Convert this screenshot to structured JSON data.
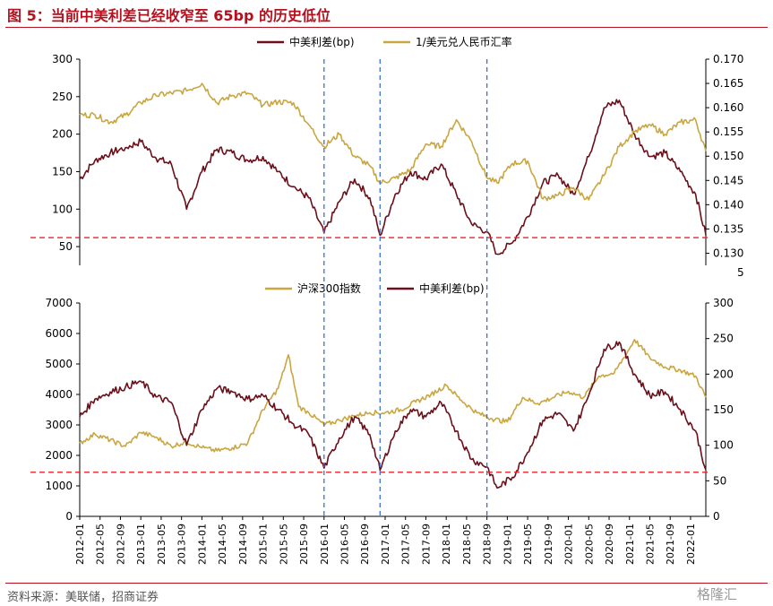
{
  "title": "图 5：当前中美利差已经收窄至 65bp 的历史低位",
  "source": "资料来源：美联储，招商证券",
  "watermark": "格隆汇",
  "colors": {
    "spread": "#6b0f1a",
    "fx": "#c9a640",
    "csi": "#c9a640",
    "ref_line": "#e8252a",
    "vline": "#3a6fd8",
    "title": "#b4101e"
  },
  "chart_data": [
    {
      "type": "line",
      "legend": [
        "中美利差(bp)",
        "1/美元兑人民币汇率"
      ],
      "y_left": {
        "ticks": [
          "300",
          "250",
          "200",
          "150",
          "100",
          "50"
        ],
        "range": [
          25,
          300
        ]
      },
      "y_right": {
        "ticks": [
          "0.170",
          "0.165",
          "0.160",
          "0.155",
          "0.150",
          "0.145",
          "0.140",
          "0.135",
          "0.130"
        ],
        "range": [
          0.1275,
          0.17
        ]
      },
      "reference_y": 62,
      "series": [
        {
          "name": "中美利差(bp)",
          "axis": "left",
          "x": [
            "2012-01",
            "2012-04",
            "2012-07",
            "2012-10",
            "2013-01",
            "2013-04",
            "2013-07",
            "2013-10",
            "2014-01",
            "2014-04",
            "2014-07",
            "2014-10",
            "2015-01",
            "2015-04",
            "2015-07",
            "2015-10",
            "2016-01",
            "2016-04",
            "2016-07",
            "2016-10",
            "2016-12",
            "2017-03",
            "2017-06",
            "2017-09",
            "2017-12",
            "2018-03",
            "2018-06",
            "2018-09",
            "2018-11",
            "2019-02",
            "2019-05",
            "2019-08",
            "2019-11",
            "2020-02",
            "2020-05",
            "2020-08",
            "2020-11",
            "2021-02",
            "2021-05",
            "2021-08",
            "2021-11",
            "2022-02",
            "2022-04"
          ],
          "y": [
            140,
            165,
            175,
            182,
            190,
            168,
            160,
            100,
            150,
            180,
            175,
            165,
            170,
            150,
            130,
            115,
            68,
            110,
            140,
            115,
            65,
            120,
            150,
            140,
            160,
            120,
            80,
            70,
            40,
            55,
            90,
            135,
            145,
            120,
            170,
            235,
            245,
            200,
            170,
            175,
            150,
            120,
            65
          ]
        },
        {
          "name": "1/美元兑人民币汇率",
          "axis": "right",
          "x": [
            "2012-01",
            "2012-04",
            "2012-07",
            "2012-10",
            "2013-01",
            "2013-04",
            "2013-07",
            "2013-10",
            "2014-01",
            "2014-04",
            "2014-07",
            "2014-10",
            "2015-01",
            "2015-04",
            "2015-07",
            "2015-10",
            "2016-01",
            "2016-04",
            "2016-07",
            "2016-10",
            "2016-12",
            "2017-03",
            "2017-06",
            "2017-09",
            "2017-12",
            "2018-03",
            "2018-06",
            "2018-09",
            "2018-11",
            "2019-02",
            "2019-05",
            "2019-08",
            "2019-11",
            "2020-02",
            "2020-05",
            "2020-08",
            "2020-11",
            "2021-02",
            "2021-05",
            "2021-08",
            "2021-11",
            "2022-02",
            "2022-04"
          ],
          "y": [
            0.1585,
            0.1585,
            0.157,
            0.1585,
            0.161,
            0.1625,
            0.163,
            0.1635,
            0.165,
            0.161,
            0.1625,
            0.163,
            0.1605,
            0.1612,
            0.161,
            0.1565,
            0.152,
            0.1545,
            0.15,
            0.148,
            0.1445,
            0.1455,
            0.1472,
            0.1525,
            0.152,
            0.1575,
            0.153,
            0.1455,
            0.1445,
            0.1485,
            0.149,
            0.1412,
            0.142,
            0.1435,
            0.141,
            0.146,
            0.152,
            0.155,
            0.1565,
            0.1545,
            0.157,
            0.1575,
            0.151
          ]
        }
      ]
    },
    {
      "type": "line",
      "legend": [
        "沪深300指数",
        "中美利差(bp)"
      ],
      "y_left": {
        "ticks": [
          "7000",
          "6000",
          "5000",
          "4000",
          "3000",
          "2000",
          "1000",
          "0"
        ],
        "range": [
          0,
          7000
        ]
      },
      "y_right": {
        "ticks": [
          "300",
          "250",
          "200",
          "150",
          "100",
          "50",
          "0"
        ],
        "range": [
          0,
          300
        ]
      },
      "reference_y": 62,
      "series": [
        {
          "name": "沪深300指数",
          "axis": "left",
          "x": [
            "2012-01",
            "2012-04",
            "2012-07",
            "2012-10",
            "2013-01",
            "2013-04",
            "2013-07",
            "2013-10",
            "2014-01",
            "2014-04",
            "2014-07",
            "2014-10",
            "2015-01",
            "2015-04",
            "2015-06",
            "2015-08",
            "2015-10",
            "2016-01",
            "2016-04",
            "2016-07",
            "2016-10",
            "2017-01",
            "2017-04",
            "2017-07",
            "2017-10",
            "2018-01",
            "2018-04",
            "2018-07",
            "2018-10",
            "2019-01",
            "2019-04",
            "2019-07",
            "2019-10",
            "2020-01",
            "2020-04",
            "2020-07",
            "2020-10",
            "2021-01",
            "2021-02",
            "2021-05",
            "2021-08",
            "2021-11",
            "2022-02",
            "2022-04"
          ],
          "y": [
            2400,
            2700,
            2500,
            2300,
            2750,
            2600,
            2300,
            2450,
            2250,
            2150,
            2250,
            2400,
            3500,
            4200,
            5300,
            3600,
            3400,
            3000,
            3150,
            3300,
            3400,
            3400,
            3500,
            3750,
            4000,
            4300,
            3800,
            3400,
            3200,
            3100,
            3900,
            3700,
            3900,
            4100,
            3900,
            4600,
            4700,
            5500,
            5800,
            5200,
            4900,
            4800,
            4600,
            3900
          ]
        },
        {
          "name": "中美利差(bp)",
          "axis": "right",
          "x": [
            "2012-01",
            "2012-04",
            "2012-07",
            "2012-10",
            "2013-01",
            "2013-04",
            "2013-07",
            "2013-10",
            "2014-01",
            "2014-04",
            "2014-07",
            "2014-10",
            "2015-01",
            "2015-04",
            "2015-07",
            "2015-10",
            "2016-01",
            "2016-04",
            "2016-07",
            "2016-10",
            "2016-12",
            "2017-03",
            "2017-06",
            "2017-09",
            "2017-12",
            "2018-03",
            "2018-06",
            "2018-09",
            "2018-11",
            "2019-02",
            "2019-05",
            "2019-08",
            "2019-11",
            "2020-02",
            "2020-05",
            "2020-08",
            "2020-11",
            "2021-02",
            "2021-05",
            "2021-08",
            "2021-11",
            "2022-02",
            "2022-04"
          ],
          "y": [
            140,
            165,
            175,
            182,
            190,
            168,
            160,
            100,
            150,
            180,
            175,
            165,
            170,
            150,
            130,
            115,
            68,
            110,
            140,
            115,
            65,
            120,
            150,
            140,
            160,
            120,
            80,
            70,
            40,
            55,
            90,
            135,
            145,
            120,
            170,
            235,
            245,
            200,
            170,
            175,
            150,
            120,
            65
          ]
        }
      ]
    }
  ],
  "x_ticks": [
    "2012-01",
    "2012-05",
    "2012-09",
    "2013-01",
    "2013-05",
    "2013-09",
    "2014-01",
    "2014-05",
    "2014-09",
    "2015-01",
    "2015-05",
    "2015-09",
    "2016-01",
    "2016-05",
    "2016-09",
    "2017-01",
    "2017-05",
    "2017-09",
    "2018-01",
    "2018-05",
    "2018-09",
    "2019-01",
    "2019-05",
    "2019-09",
    "2020-01",
    "2020-05",
    "2020-09",
    "2021-01",
    "2021-05",
    "2021-09",
    "2022-01"
  ],
  "x_range": [
    "2012-01",
    "2022-04"
  ],
  "vlines": [
    "2016-01",
    "2016-12",
    "2018-09"
  ],
  "partial_tick": "5"
}
